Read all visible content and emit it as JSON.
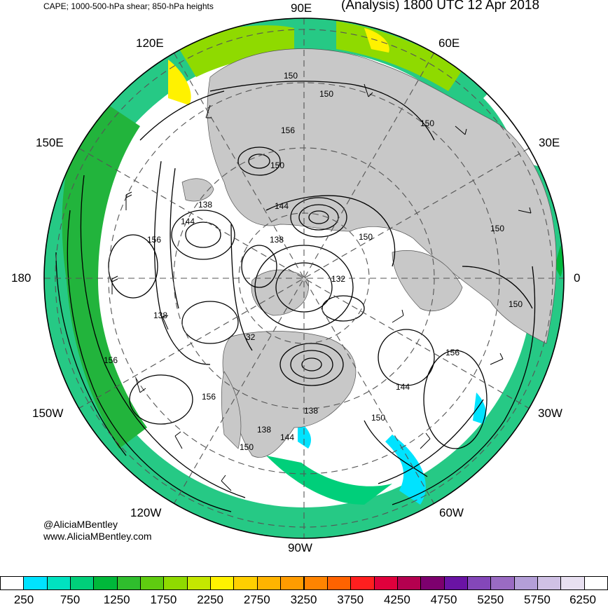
{
  "header": {
    "subtitle": "CAPE; 1000-500-hPa shear; 850-hPa heights",
    "title": "(Analysis) 1800 UTC 12 Apr 2018"
  },
  "longitude_labels": {
    "lon_90e": "90E",
    "lon_60e": "60E",
    "lon_120e": "120E",
    "lon_150e": "150E",
    "lon_30e": "30E",
    "lon_180": "180",
    "lon_0": "0",
    "lon_150w": "150W",
    "lon_30w": "30W",
    "lon_120w": "120W",
    "lon_60w": "60W",
    "lon_90w": "90W"
  },
  "contour_labels": [
    "150",
    "150",
    "156",
    "150",
    "150",
    "144",
    "138",
    "144",
    "156",
    "150",
    "138",
    "132",
    "150",
    "150",
    "32",
    "156",
    "156",
    "144",
    "156",
    "138",
    "150",
    "138",
    "144",
    "150",
    "138"
  ],
  "credits": {
    "handle": "@AliciaMBentley",
    "website": "www.AliciaMBentley.com"
  },
  "colorbar": {
    "labels": [
      "250",
      "750",
      "1250",
      "1750",
      "2250",
      "2750",
      "3250",
      "3750",
      "4250",
      "4750",
      "5250",
      "5750",
      "6250"
    ],
    "colors": [
      "#ffffff",
      "#00e3ff",
      "#00e2c0",
      "#00cf7a",
      "#00b83a",
      "#2fbe2d",
      "#5fcc10",
      "#8fda00",
      "#c4e700",
      "#fff200",
      "#ffcf00",
      "#ffb400",
      "#ff9c00",
      "#ff8400",
      "#ff6300",
      "#ff1f1f",
      "#e0003c",
      "#b4004f",
      "#7d006e",
      "#6a13a4",
      "#8447b9",
      "#9a6bc3",
      "#b49fd8",
      "#d0c1e5",
      "#e8e0f1",
      "#ffffff"
    ]
  }
}
